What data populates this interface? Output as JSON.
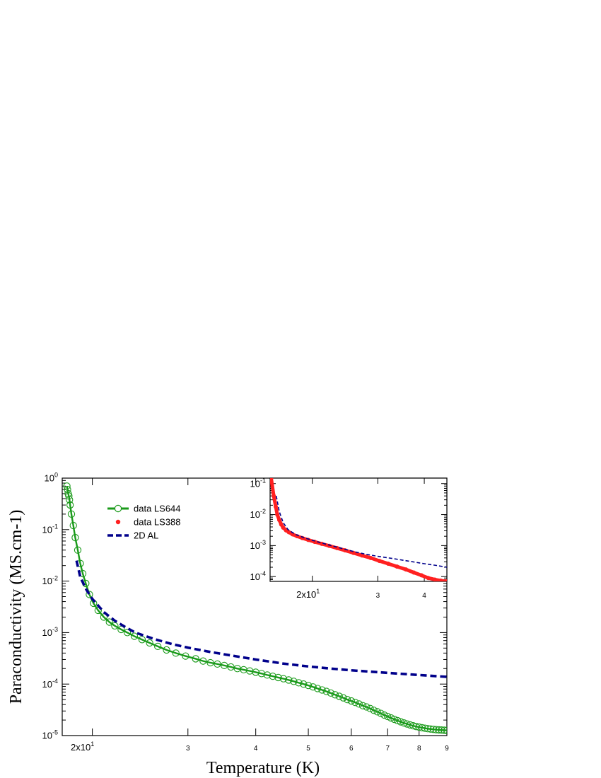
{
  "chart_data": [
    {
      "id": "main",
      "type": "scatter",
      "xlabel": "Temperature  (K)",
      "ylabel": "Paraconductivity (MS.cm-1)",
      "xscale": "log",
      "yscale": "log",
      "xlim": [
        17.6,
        90
      ],
      "ylim": [
        1e-05,
        1
      ],
      "x_ticks": [
        {
          "value": 20,
          "label": "2x10",
          "sup": "1"
        },
        {
          "value": 30,
          "label": "3"
        },
        {
          "value": 40,
          "label": "4"
        },
        {
          "value": 50,
          "label": "5"
        },
        {
          "value": 60,
          "label": "6"
        },
        {
          "value": 70,
          "label": "7"
        },
        {
          "value": 80,
          "label": "8"
        },
        {
          "value": 90,
          "label": "9"
        }
      ],
      "y_ticks": [
        {
          "value": 1,
          "label": "10",
          "sup": "0"
        },
        {
          "value": 0.1,
          "label": "10",
          "sup": "-1"
        },
        {
          "value": 0.01,
          "label": "10",
          "sup": "-2"
        },
        {
          "value": 0.001,
          "label": "10",
          "sup": "-3"
        },
        {
          "value": 0.0001,
          "label": "10",
          "sup": "-4"
        },
        {
          "value": 1e-05,
          "label": "10",
          "sup": "-5"
        }
      ],
      "legend": {
        "placement": "top-left",
        "entries": [
          {
            "label": "data LS644",
            "color": "#1a9a1a",
            "style": "line-open-circle"
          },
          {
            "label": "data LS388",
            "color": "#ff2020",
            "style": "dot"
          },
          {
            "label": "2D AL",
            "color": "#00008b",
            "style": "dashed"
          }
        ]
      },
      "series": [
        {
          "name": "data LS644",
          "color": "#1a9a1a",
          "marker": "open-circle",
          "x": [
            17.95,
            18.0,
            18.05,
            18.1,
            18.15,
            18.2,
            18.3,
            18.45,
            18.6,
            18.8,
            19.0,
            19.2,
            19.45,
            19.75,
            20.1,
            20.5,
            21.0,
            21.5,
            22.0,
            22.6,
            23.2,
            23.9,
            24.7,
            25.5,
            26.4,
            27.4,
            28.5,
            29.7,
            31.0,
            32.0,
            33.0,
            34.0,
            35.0,
            36.0,
            37.0,
            38.0,
            39.0,
            40.0,
            41.0,
            42.0,
            43.0,
            44.0,
            45.0,
            46.0,
            47.0,
            48.0,
            49.0,
            50.0,
            51.0,
            52.0,
            53.0,
            54.0,
            55.0,
            56.0,
            57.0,
            58.0,
            59.0,
            60.0,
            61.0,
            62.0,
            63.0,
            64.0,
            65.0,
            66.0,
            67.0,
            68.0,
            69.0,
            70.0,
            71.0,
            72.0,
            73.0,
            74.0,
            75.0,
            76.0,
            77.0,
            78.0,
            79.0,
            80.0,
            81.0,
            82.0,
            83.0,
            84.0,
            85.0,
            86.0,
            87.0,
            88.0,
            89.0,
            90.0
          ],
          "y": [
            0.7,
            0.6,
            0.5,
            0.45,
            0.38,
            0.3,
            0.2,
            0.12,
            0.07,
            0.04,
            0.022,
            0.014,
            0.009,
            0.0055,
            0.0037,
            0.0027,
            0.002,
            0.0016,
            0.00135,
            0.00115,
            0.001,
            0.00085,
            0.00073,
            0.00063,
            0.00054,
            0.00046,
            0.0004,
            0.00035,
            0.00031,
            0.00028,
            0.00026,
            0.000245,
            0.00023,
            0.000215,
            0.0002,
            0.00019,
            0.00018,
            0.00017,
            0.00016,
            0.00015,
            0.000142,
            0.000134,
            0.000127,
            0.00012,
            0.000113,
            0.000106,
            0.0001,
            9.4e-05,
            8.8e-05,
            8.2e-05,
            7.7e-05,
            7.2e-05,
            6.7e-05,
            6.2e-05,
            5.8e-05,
            5.4e-05,
            5e-05,
            4.7e-05,
            4.4e-05,
            4.1e-05,
            3.8e-05,
            3.6e-05,
            3.35e-05,
            3.1e-05,
            2.9e-05,
            2.7e-05,
            2.5e-05,
            2.35e-05,
            2.2e-05,
            2.07e-05,
            1.95e-05,
            1.85e-05,
            1.76e-05,
            1.68e-05,
            1.61e-05,
            1.55e-05,
            1.5e-05,
            1.46e-05,
            1.42e-05,
            1.39e-05,
            1.36e-05,
            1.34e-05,
            1.32e-05,
            1.3e-05,
            1.29e-05,
            1.28e-05,
            1.27e-05,
            1.26e-05
          ]
        },
        {
          "name": "2D AL",
          "color": "#00008b",
          "style": "dashed",
          "x": [
            18.7,
            19.0,
            19.5,
            20.0,
            21.0,
            22.0,
            23.0,
            24.0,
            26.0,
            28.0,
            30.0,
            33.0,
            36.0,
            40.0,
            45.0,
            50.0,
            55.0,
            60.0,
            70.0,
            80.0,
            90.0
          ],
          "y": [
            0.025,
            0.012,
            0.0068,
            0.0045,
            0.0025,
            0.0017,
            0.00128,
            0.001,
            0.00075,
            0.0006,
            0.00051,
            0.00042,
            0.00036,
            0.0003,
            0.00025,
            0.00022,
            0.0002,
            0.000185,
            0.000165,
            0.00015,
            0.000138
          ]
        }
      ]
    },
    {
      "id": "inset",
      "type": "scatter",
      "xscale": "log",
      "yscale": "log",
      "xlim": [
        15.4,
        46
      ],
      "ylim": [
        7e-05,
        0.15
      ],
      "x_ticks": [
        {
          "value": 20,
          "label": "2x10",
          "sup": "1"
        },
        {
          "value": 30,
          "label": "3"
        },
        {
          "value": 40,
          "label": "4"
        }
      ],
      "y_ticks": [
        {
          "value": 0.1,
          "label": "10",
          "sup": "-1"
        },
        {
          "value": 0.01,
          "label": "10",
          "sup": "-2"
        },
        {
          "value": 0.001,
          "label": "10",
          "sup": "-3"
        },
        {
          "value": 0.0001,
          "label": "10",
          "sup": "-4"
        }
      ],
      "series": [
        {
          "name": "data LS388",
          "color": "#ff2020",
          "marker": "dot",
          "x": [
            15.5,
            15.75,
            15.95,
            16.1,
            16.3,
            16.5,
            16.7,
            17.0,
            17.3,
            17.7,
            18.2,
            18.8,
            19.5,
            20.3,
            21.2,
            22.2,
            23.3,
            24.5,
            25.8,
            27.2,
            28.7,
            30.3,
            32.0,
            33.8,
            35.7,
            37.5,
            39.3,
            41.0,
            42.7,
            44.3,
            45.8
          ],
          "y": [
            0.15,
            0.04,
            0.018,
            0.01,
            0.0067,
            0.0048,
            0.0038,
            0.0031,
            0.0027,
            0.0023,
            0.002,
            0.00175,
            0.00152,
            0.00132,
            0.00114,
            0.00098,
            0.00083,
            0.0007,
            0.00058,
            0.00048,
            0.0004,
            0.00032,
            0.00026,
            0.00021,
            0.00017,
            0.000135,
            0.00011,
            9e-05,
            8e-05,
            7.4e-05,
            7e-05
          ]
        },
        {
          "name": "2D AL",
          "color": "#00008b",
          "style": "dashed",
          "x": [
            16.0,
            16.3,
            16.7,
            17.2,
            18.0,
            19.0,
            20.0,
            22.0,
            24.0,
            26.0,
            28.0,
            30.0,
            33.0,
            36.0,
            40.0,
            43.0,
            46.0
          ],
          "y": [
            0.04,
            0.0125,
            0.0055,
            0.0033,
            0.0023,
            0.0018,
            0.00148,
            0.00107,
            0.00081,
            0.00063,
            0.00052,
            0.00045,
            0.00038,
            0.00032,
            0.00026,
            0.00023,
            0.0002
          ]
        }
      ]
    }
  ]
}
